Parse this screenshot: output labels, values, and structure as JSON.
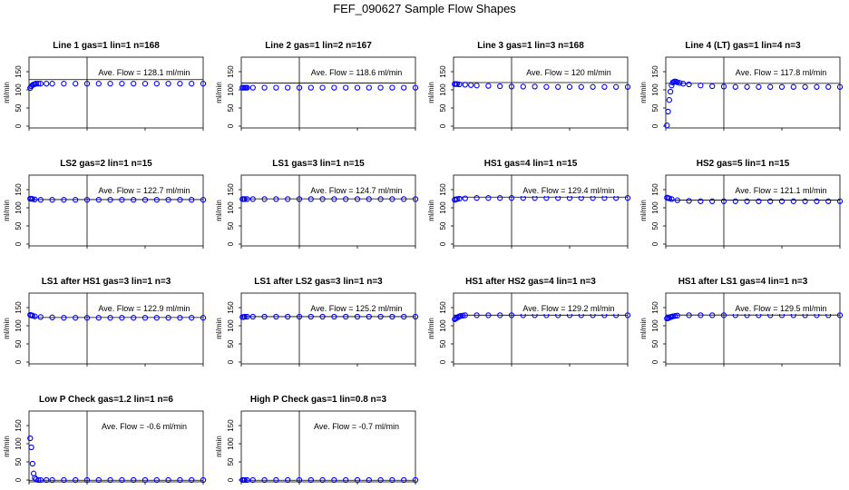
{
  "title": "FEF_090627  Sample Flow Shapes",
  "ylabel": "ml/min",
  "x_ticks": [
    0,
    50,
    100,
    150
  ],
  "y_ticks": [
    0,
    50,
    100,
    150
  ],
  "point_color": "#0000ff",
  "chart_data": [
    {
      "type": "scatter",
      "title": "Line 1 gas=1 lin=1 n=168",
      "annotation": "Ave. Flow = 128.1 ml/min",
      "ref_y": 128.1,
      "xlim": [
        0,
        150
      ],
      "ylim": [
        -5,
        190
      ],
      "series": [
        {
          "x": [
            1,
            2,
            3,
            4,
            5,
            6,
            8,
            10,
            15,
            20,
            30,
            40,
            50,
            60,
            70,
            80,
            90,
            100,
            110,
            120,
            130,
            140,
            150
          ],
          "y": [
            105,
            110,
            113,
            115,
            116,
            117,
            117,
            117,
            117,
            117,
            117,
            117,
            117,
            117,
            117,
            117,
            117,
            117,
            117,
            117,
            117,
            117,
            117
          ]
        }
      ]
    },
    {
      "type": "scatter",
      "title": "Line 2 gas=1 lin=2 n=167",
      "annotation": "Ave. Flow = 118.6 ml/min",
      "ref_y": 118.6,
      "xlim": [
        0,
        150
      ],
      "ylim": [
        -5,
        190
      ],
      "series": [
        {
          "x": [
            1,
            2,
            3,
            4,
            5,
            10,
            20,
            30,
            40,
            50,
            60,
            70,
            80,
            90,
            100,
            110,
            120,
            130,
            140,
            150
          ],
          "y": [
            106,
            106,
            106,
            106,
            106,
            106,
            106,
            106,
            106,
            106,
            106,
            106,
            106,
            106,
            106,
            106,
            106,
            106,
            106,
            106
          ]
        }
      ]
    },
    {
      "type": "scatter",
      "title": "Line 3 gas=1 lin=3 n=168",
      "annotation": "Ave. Flow = 120 ml/min",
      "ref_y": 120,
      "xlim": [
        0,
        150
      ],
      "ylim": [
        -5,
        190
      ],
      "series": [
        {
          "x": [
            1,
            2,
            3,
            5,
            10,
            15,
            20,
            30,
            40,
            50,
            60,
            70,
            80,
            90,
            100,
            110,
            120,
            130,
            140,
            150
          ],
          "y": [
            116,
            116,
            116,
            115,
            114,
            113,
            112,
            111,
            110,
            109,
            109,
            109,
            108,
            108,
            108,
            108,
            108,
            108,
            108,
            108
          ]
        }
      ]
    },
    {
      "type": "scatter",
      "title": "Line 4 (LT) gas=1 lin=4 n=3",
      "annotation": "Ave. Flow = 117.8 ml/min",
      "ref_y": 117.8,
      "xlim": [
        0,
        150
      ],
      "ylim": [
        -5,
        190
      ],
      "series": [
        {
          "x": [
            1,
            2,
            3,
            4,
            5,
            6,
            7,
            8,
            9,
            10,
            12,
            15,
            20,
            30,
            40,
            50,
            60,
            70,
            80,
            90,
            100,
            110,
            120,
            130,
            140,
            150
          ],
          "y": [
            2,
            40,
            72,
            95,
            112,
            120,
            122,
            123,
            122,
            121,
            119,
            117,
            115,
            112,
            110,
            109,
            108,
            108,
            108,
            108,
            108,
            108,
            108,
            108,
            108,
            108
          ]
        }
      ]
    },
    {
      "type": "scatter",
      "title": "LS2 gas=2 lin=1 n=15",
      "annotation": "Ave. Flow = 122.7 ml/min",
      "ref_y": 122.7,
      "xlim": [
        0,
        150
      ],
      "ylim": [
        -5,
        190
      ],
      "series": [
        {
          "x": [
            1,
            2,
            3,
            5,
            10,
            20,
            30,
            40,
            50,
            60,
            70,
            80,
            90,
            100,
            110,
            120,
            130,
            140,
            150
          ],
          "y": [
            125,
            125,
            124,
            123,
            122,
            122,
            122,
            122,
            122,
            122,
            122,
            122,
            122,
            122,
            122,
            122,
            122,
            122,
            122
          ]
        }
      ]
    },
    {
      "type": "scatter",
      "title": "LS1 gas=3 lin=1 n=15",
      "annotation": "Ave. Flow = 124.7 ml/min",
      "ref_y": 124.7,
      "xlim": [
        0,
        150
      ],
      "ylim": [
        -5,
        190
      ],
      "series": [
        {
          "x": [
            1,
            2,
            3,
            5,
            10,
            20,
            30,
            40,
            50,
            60,
            70,
            80,
            90,
            100,
            110,
            120,
            130,
            140,
            150
          ],
          "y": [
            124,
            124,
            124,
            124,
            124,
            124,
            124,
            124,
            124,
            124,
            124,
            124,
            124,
            124,
            124,
            124,
            124,
            124,
            124
          ]
        }
      ]
    },
    {
      "type": "scatter",
      "title": "HS1 gas=4 lin=1 n=15",
      "annotation": "Ave. Flow = 129.4 ml/min",
      "ref_y": 129.4,
      "xlim": [
        0,
        150
      ],
      "ylim": [
        -5,
        190
      ],
      "series": [
        {
          "x": [
            1,
            2,
            3,
            5,
            10,
            20,
            30,
            40,
            50,
            60,
            70,
            80,
            90,
            100,
            110,
            120,
            130,
            140,
            150
          ],
          "y": [
            122,
            123,
            124,
            125,
            126,
            127,
            127,
            127,
            127,
            127,
            127,
            127,
            127,
            127,
            127,
            127,
            127,
            127,
            127
          ]
        }
      ]
    },
    {
      "type": "scatter",
      "title": "HS2 gas=5 lin=1 n=15",
      "annotation": "Ave. Flow = 121.1 ml/min",
      "ref_y": 121.1,
      "xlim": [
        0,
        150
      ],
      "ylim": [
        -5,
        190
      ],
      "series": [
        {
          "x": [
            1,
            2,
            3,
            5,
            10,
            20,
            30,
            40,
            50,
            60,
            70,
            80,
            90,
            100,
            110,
            120,
            130,
            140,
            150
          ],
          "y": [
            128,
            127,
            126,
            124,
            121,
            119,
            118,
            118,
            118,
            118,
            118,
            118,
            118,
            118,
            118,
            118,
            118,
            118,
            118
          ]
        }
      ]
    },
    {
      "type": "scatter",
      "title": "LS1 after HS1 gas=3 lin=1 n=3",
      "annotation": "Ave. Flow = 122.9 ml/min",
      "ref_y": 122.9,
      "xlim": [
        0,
        150
      ],
      "ylim": [
        -5,
        190
      ],
      "series": [
        {
          "x": [
            1,
            2,
            3,
            5,
            10,
            20,
            30,
            40,
            50,
            60,
            70,
            80,
            90,
            100,
            110,
            120,
            130,
            140,
            150
          ],
          "y": [
            130,
            129,
            128,
            126,
            124,
            123,
            122,
            122,
            122,
            122,
            122,
            122,
            122,
            122,
            122,
            122,
            122,
            122,
            122
          ]
        }
      ]
    },
    {
      "type": "scatter",
      "title": "LS1 after LS2 gas=3 lin=1 n=3",
      "annotation": "Ave. Flow = 125.2 ml/min",
      "ref_y": 125.2,
      "xlim": [
        0,
        150
      ],
      "ylim": [
        -5,
        190
      ],
      "series": [
        {
          "x": [
            1,
            2,
            3,
            5,
            10,
            20,
            30,
            40,
            50,
            60,
            70,
            80,
            90,
            100,
            110,
            120,
            130,
            140,
            150
          ],
          "y": [
            124,
            124,
            125,
            125,
            125,
            125,
            125,
            125,
            125,
            125,
            125,
            125,
            125,
            125,
            125,
            125,
            125,
            125,
            125
          ]
        }
      ]
    },
    {
      "type": "scatter",
      "title": "HS1 after HS2 gas=4 lin=1 n=3",
      "annotation": "Ave. Flow = 129.2 ml/min",
      "ref_y": 129.2,
      "xlim": [
        0,
        150
      ],
      "ylim": [
        -5,
        190
      ],
      "series": [
        {
          "x": [
            1,
            2,
            3,
            4,
            5,
            6,
            8,
            10,
            20,
            30,
            40,
            50,
            60,
            70,
            80,
            90,
            100,
            110,
            120,
            130,
            140,
            150
          ],
          "y": [
            118,
            120,
            122,
            124,
            126,
            127,
            128,
            129,
            129,
            129,
            129,
            129,
            129,
            129,
            129,
            129,
            129,
            129,
            129,
            129,
            129,
            129
          ]
        }
      ]
    },
    {
      "type": "scatter",
      "title": "HS1 after LS1 gas=4 lin=1 n=3",
      "annotation": "Ave. Flow = 129.5 ml/min",
      "ref_y": 129.5,
      "xlim": [
        0,
        150
      ],
      "ylim": [
        -5,
        190
      ],
      "series": [
        {
          "x": [
            1,
            2,
            3,
            4,
            5,
            6,
            8,
            10,
            20,
            30,
            40,
            50,
            60,
            70,
            80,
            90,
            100,
            110,
            120,
            130,
            140,
            150
          ],
          "y": [
            120,
            121,
            122,
            124,
            125,
            126,
            127,
            128,
            129,
            129,
            129,
            129,
            129,
            129,
            129,
            129,
            129,
            129,
            129,
            129,
            129,
            129
          ]
        }
      ]
    },
    {
      "type": "scatter",
      "title": "Low P Check gas=1.2 lin=1 n=6",
      "annotation": "Ave. Flow = -0.6 ml/min",
      "ref_y": -0.6,
      "xlim": [
        0,
        150
      ],
      "ylim": [
        -5,
        190
      ],
      "series": [
        {
          "x": [
            1,
            2,
            3,
            4,
            5,
            6,
            8,
            10,
            15,
            20,
            30,
            40,
            50,
            60,
            70,
            80,
            90,
            100,
            110,
            120,
            130,
            140,
            150
          ],
          "y": [
            115,
            90,
            45,
            18,
            6,
            2,
            0,
            0,
            0,
            0,
            0,
            0,
            0,
            0,
            0,
            0,
            0,
            0,
            0,
            0,
            0,
            0,
            0
          ]
        }
      ]
    },
    {
      "type": "scatter",
      "title": "High P Check gas=1 lin=0.8 n=3",
      "annotation": "Ave. Flow = -0.7 ml/min",
      "ref_y": -0.7,
      "xlim": [
        0,
        150
      ],
      "ylim": [
        -5,
        190
      ],
      "series": [
        {
          "x": [
            1,
            2,
            3,
            5,
            10,
            20,
            30,
            40,
            50,
            60,
            70,
            80,
            90,
            100,
            110,
            120,
            130,
            140,
            150
          ],
          "y": [
            0,
            0,
            0,
            0,
            0,
            0,
            0,
            0,
            0,
            0,
            0,
            0,
            0,
            0,
            0,
            0,
            0,
            0,
            0
          ]
        }
      ]
    }
  ]
}
